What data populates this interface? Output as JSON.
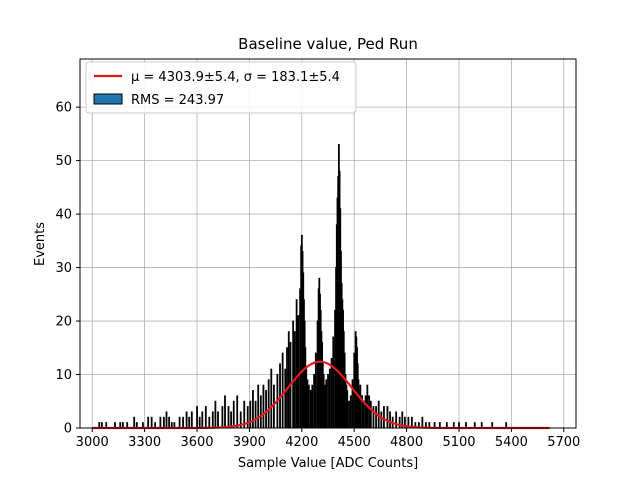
{
  "chart_data": {
    "type": "bar",
    "title": "Baseline value, Ped Run",
    "xlabel": "Sample Value [ADC Counts]",
    "ylabel": "Events",
    "xlim": [
      2930,
      5770
    ],
    "ylim": [
      0,
      69
    ],
    "xticks": [
      3000,
      3300,
      3600,
      3900,
      4200,
      4500,
      4800,
      5100,
      5400,
      5700
    ],
    "yticks": [
      0,
      10,
      20,
      30,
      40,
      50,
      60
    ],
    "grid": true,
    "legend_position": "top-left",
    "legend": [
      {
        "label": "μ = 4303.9±5.4, σ = 183.1±5.4",
        "kind": "line",
        "color": "#e31a1c"
      },
      {
        "label": "RMS = 243.97",
        "kind": "patch",
        "color": "#1f77b4"
      }
    ],
    "series": [
      {
        "name": "RMS = 243.97",
        "kind": "histogram",
        "bar_fill": "#1f77b4",
        "bar_edge": "#000000",
        "bin_width": 4,
        "x": [
          3040,
          3055,
          3080,
          3130,
          3160,
          3175,
          3200,
          3240,
          3255,
          3290,
          3320,
          3340,
          3360,
          3390,
          3410,
          3425,
          3440,
          3455,
          3470,
          3500,
          3520,
          3540,
          3555,
          3570,
          3600,
          3615,
          3630,
          3650,
          3670,
          3690,
          3705,
          3720,
          3745,
          3760,
          3780,
          3795,
          3810,
          3830,
          3850,
          3870,
          3890,
          3905,
          3920,
          3935,
          3950,
          3965,
          3980,
          3995,
          4010,
          4025,
          4040,
          4060,
          4075,
          4090,
          4105,
          4115,
          4125,
          4135,
          4150,
          4160,
          4170,
          4180,
          4190,
          4196,
          4200,
          4204,
          4208,
          4212,
          4216,
          4220,
          4225,
          4232,
          4240,
          4250,
          4260,
          4270,
          4280,
          4290,
          4296,
          4300,
          4304,
          4308,
          4312,
          4316,
          4320,
          4325,
          4332,
          4340,
          4350,
          4360,
          4370,
          4380,
          4390,
          4396,
          4400,
          4404,
          4408,
          4412,
          4416,
          4420,
          4424,
          4428,
          4432,
          4436,
          4440,
          4445,
          4450,
          4455,
          4460,
          4470,
          4480,
          4490,
          4500,
          4508,
          4512,
          4516,
          4520,
          4524,
          4528,
          4535,
          4545,
          4555,
          4565,
          4575,
          4585,
          4595,
          4610,
          4625,
          4640,
          4655,
          4670,
          4690,
          4705,
          4720,
          4740,
          4760,
          4775,
          4790,
          4810,
          4830,
          4850,
          4870,
          4890,
          4910,
          4930,
          4960,
          4990,
          5030,
          5070,
          5100,
          5140,
          5190,
          5230,
          5290,
          5370
        ],
        "y": [
          1,
          1,
          1,
          1,
          1,
          1,
          1,
          2,
          1,
          1,
          2,
          2,
          1,
          2,
          2,
          3,
          2,
          1,
          1,
          2,
          2,
          3,
          2,
          3,
          4,
          2,
          3,
          4,
          2,
          3,
          5,
          3,
          4,
          6,
          4,
          3,
          5,
          6,
          3,
          5,
          4,
          5,
          7,
          5,
          8,
          6,
          8,
          7,
          9,
          11,
          8,
          10,
          12,
          14,
          11,
          15,
          18,
          16,
          20,
          18,
          24,
          21,
          26,
          34,
          36,
          33,
          29,
          24,
          20,
          15,
          11,
          9,
          8,
          7,
          8,
          10,
          14,
          20,
          26,
          28,
          25,
          22,
          18,
          16,
          12,
          10,
          8,
          9,
          10,
          11,
          13,
          17,
          22,
          30,
          38,
          43,
          47,
          53,
          48,
          41,
          33,
          27,
          24,
          22,
          18,
          14,
          10,
          8,
          7,
          5,
          6,
          9,
          14,
          18,
          17,
          15,
          12,
          9,
          7,
          8,
          6,
          5,
          6,
          8,
          6,
          5,
          4,
          4,
          5,
          3,
          4,
          4,
          3,
          2,
          3,
          2,
          3,
          2,
          2,
          2,
          1,
          1,
          2,
          1,
          1,
          1,
          1,
          1,
          1,
          1,
          1,
          1,
          1,
          1,
          1
        ]
      },
      {
        "name": "μ = 4303.9±5.4, σ = 183.1±5.4",
        "kind": "gaussian_fit",
        "color": "#e31a1c",
        "mu": 4303.9,
        "sigma": 183.1,
        "amplitude": 12.4,
        "x_range": [
          3000,
          5620
        ]
      }
    ]
  }
}
